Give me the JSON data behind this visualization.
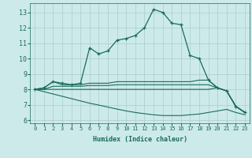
{
  "xlabel": "Humidex (Indice chaleur)",
  "bg_color": "#cdeaea",
  "grid_color": "#aacccc",
  "line_color": "#1a6b5a",
  "xlim": [
    -0.5,
    23.5
  ],
  "ylim": [
    5.8,
    13.6
  ],
  "yticks": [
    6,
    7,
    8,
    9,
    10,
    11,
    12,
    13
  ],
  "xticks": [
    0,
    1,
    2,
    3,
    4,
    5,
    6,
    7,
    8,
    9,
    10,
    11,
    12,
    13,
    14,
    15,
    16,
    17,
    18,
    19,
    20,
    21,
    22,
    23
  ],
  "curves": [
    {
      "x": [
        0,
        1,
        2,
        3,
        4,
        5,
        6,
        7,
        8,
        9,
        10,
        11,
        12,
        13,
        14,
        15,
        16,
        17,
        18,
        19,
        20,
        21,
        22,
        23
      ],
      "y": [
        8.0,
        8.1,
        8.5,
        8.4,
        8.3,
        8.4,
        10.7,
        10.3,
        10.5,
        11.2,
        11.3,
        11.5,
        12.0,
        13.2,
        13.0,
        12.3,
        12.2,
        10.2,
        10.0,
        8.6,
        8.1,
        7.9,
        6.9,
        6.5
      ],
      "marker": true
    },
    {
      "x": [
        0,
        1,
        2,
        3,
        4,
        5,
        6,
        7,
        8,
        9,
        10,
        11,
        12,
        13,
        14,
        15,
        16,
        17,
        18,
        19,
        20,
        21,
        22,
        23
      ],
      "y": [
        8.0,
        8.1,
        8.5,
        8.3,
        8.3,
        8.3,
        8.4,
        8.4,
        8.4,
        8.5,
        8.5,
        8.5,
        8.5,
        8.5,
        8.5,
        8.5,
        8.5,
        8.5,
        8.6,
        8.6,
        8.1,
        7.9,
        6.9,
        6.5
      ],
      "marker": false
    },
    {
      "x": [
        0,
        1,
        2,
        3,
        4,
        5,
        6,
        7,
        8,
        9,
        10,
        11,
        12,
        13,
        14,
        15,
        16,
        17,
        18,
        19,
        20,
        21,
        22,
        23
      ],
      "y": [
        8.0,
        8.0,
        8.2,
        8.2,
        8.2,
        8.2,
        8.25,
        8.25,
        8.25,
        8.3,
        8.3,
        8.3,
        8.3,
        8.3,
        8.3,
        8.3,
        8.3,
        8.3,
        8.3,
        8.3,
        8.1,
        7.9,
        6.9,
        6.5
      ],
      "marker": false
    },
    {
      "x": [
        0,
        1,
        2,
        3,
        4,
        5,
        6,
        7,
        8,
        9,
        10,
        11,
        12,
        13,
        14,
        15,
        16,
        17,
        18,
        19,
        20,
        21,
        22,
        23
      ],
      "y": [
        8.0,
        8.0,
        8.0,
        8.0,
        8.0,
        8.0,
        8.0,
        8.0,
        8.0,
        8.0,
        8.0,
        8.0,
        8.0,
        8.0,
        8.0,
        8.0,
        8.0,
        8.0,
        8.0,
        8.0,
        8.1,
        7.9,
        6.9,
        6.5
      ],
      "marker": false
    },
    {
      "x": [
        0,
        1,
        2,
        3,
        4,
        5,
        6,
        7,
        8,
        9,
        10,
        11,
        12,
        13,
        14,
        15,
        16,
        17,
        18,
        19,
        20,
        21,
        22,
        23
      ],
      "y": [
        8.0,
        7.85,
        7.7,
        7.55,
        7.4,
        7.25,
        7.1,
        6.98,
        6.85,
        6.72,
        6.6,
        6.5,
        6.42,
        6.35,
        6.3,
        6.3,
        6.3,
        6.35,
        6.4,
        6.5,
        6.6,
        6.7,
        6.5,
        6.35
      ],
      "marker": false
    }
  ]
}
